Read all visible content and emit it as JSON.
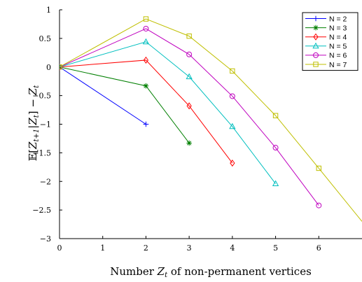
{
  "chart_data": {
    "type": "line",
    "xlabel": "Number Z_t of non-permanent vertices",
    "ylabel": "E[Z_{t+1}|Z_t] − Z_t",
    "xlim": [
      0,
      7
    ],
    "ylim": [
      -3,
      1
    ],
    "xticks": [
      "0",
      "1",
      "2",
      "3",
      "4",
      "5",
      "6"
    ],
    "yticks": [
      "1",
      "0.5",
      "0",
      "−0.5",
      "−1",
      "−1.5",
      "−2",
      "−2.5",
      "−3"
    ],
    "ytick_values": [
      1,
      0.5,
      0,
      -0.5,
      -1,
      -1.5,
      -2,
      -2.5,
      -3
    ],
    "xtick_values": [
      0,
      1,
      2,
      3,
      4,
      5,
      6
    ],
    "legend_position": "top-right",
    "grid": false,
    "series": [
      {
        "name": "N = 2",
        "color": "#0000ff",
        "marker": "plus",
        "points": [
          [
            0,
            0
          ],
          [
            2,
            -1
          ]
        ]
      },
      {
        "name": "N = 3",
        "color": "#007f00",
        "marker": "star",
        "points": [
          [
            0,
            0
          ],
          [
            2,
            -0.33
          ],
          [
            3,
            -1.33
          ]
        ]
      },
      {
        "name": "N = 4",
        "color": "#ff0000",
        "marker": "diamond",
        "points": [
          [
            0,
            0
          ],
          [
            2,
            0.12
          ],
          [
            3,
            -0.68
          ],
          [
            4,
            -1.68
          ]
        ]
      },
      {
        "name": "N = 5",
        "color": "#00bfbf",
        "marker": "triangle",
        "points": [
          [
            0,
            0
          ],
          [
            2,
            0.44
          ],
          [
            3,
            -0.17
          ],
          [
            4,
            -1.04
          ],
          [
            5,
            -2.04
          ]
        ]
      },
      {
        "name": "N = 6",
        "color": "#bf00bf",
        "marker": "circle",
        "points": [
          [
            0,
            0
          ],
          [
            2,
            0.67
          ],
          [
            3,
            0.22
          ],
          [
            4,
            -0.51
          ],
          [
            5,
            -1.41
          ],
          [
            6,
            -2.42
          ]
        ]
      },
      {
        "name": "N = 7",
        "color": "#bfbf00",
        "marker": "square",
        "points": [
          [
            0,
            0
          ],
          [
            2,
            0.84
          ],
          [
            3,
            0.54
          ],
          [
            4,
            -0.07
          ],
          [
            5,
            -0.85
          ],
          [
            6,
            -1.77
          ],
          [
            7,
            -2.7
          ]
        ]
      }
    ]
  }
}
